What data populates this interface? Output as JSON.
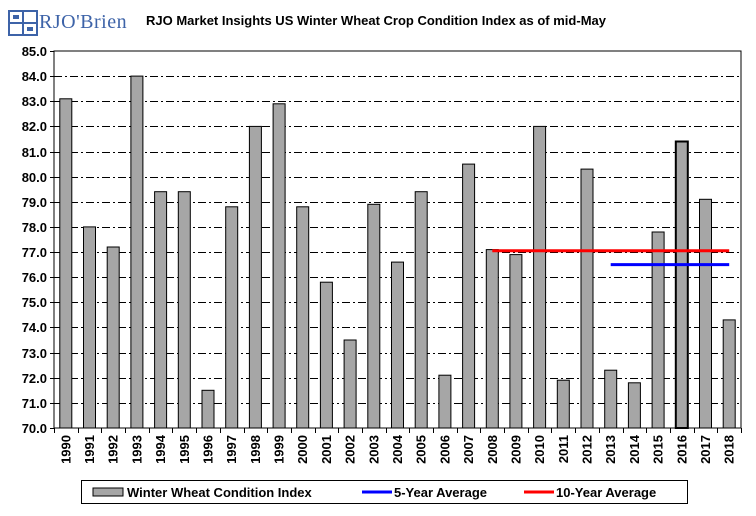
{
  "logo": {
    "text": "RJO'Brien"
  },
  "chart_data": {
    "type": "bar",
    "title": "RJO Market Insights US Winter Wheat Crop Condition Index as of mid-May",
    "xlabel": "",
    "ylabel": "",
    "ylim": [
      70.0,
      85.0
    ],
    "yticks": [
      "70.0",
      "71.0",
      "72.0",
      "73.0",
      "74.0",
      "75.0",
      "76.0",
      "77.0",
      "78.0",
      "79.0",
      "80.0",
      "81.0",
      "82.0",
      "83.0",
      "84.0",
      "85.0"
    ],
    "categories": [
      "1990",
      "1991",
      "1992",
      "1993",
      "1994",
      "1995",
      "1996",
      "1997",
      "1998",
      "1999",
      "2000",
      "2001",
      "2002",
      "2003",
      "2004",
      "2005",
      "2006",
      "2007",
      "2008",
      "2009",
      "2010",
      "2011",
      "2012",
      "2013",
      "2014",
      "2015",
      "2016",
      "2017",
      "2018"
    ],
    "series": [
      {
        "name": "Winter Wheat Condition Index",
        "type": "bar",
        "values": [
          83.1,
          78.0,
          77.2,
          84.0,
          79.4,
          79.4,
          71.5,
          78.8,
          82.0,
          82.9,
          78.8,
          75.8,
          73.5,
          78.9,
          76.6,
          79.4,
          72.1,
          80.5,
          77.1,
          76.9,
          82.0,
          71.9,
          80.3,
          72.3,
          71.8,
          77.8,
          81.4,
          79.1,
          74.3
        ],
        "highlight": "2016",
        "color": "#a6a6a6"
      },
      {
        "name": "5-Year Average",
        "type": "line",
        "x_start": "2013",
        "x_end": "2018",
        "value": 76.5,
        "color": "#0000ff"
      },
      {
        "name": "10-Year Average",
        "type": "line",
        "x_start": "2008",
        "x_end": "2018",
        "value": 77.05,
        "color": "#ff0000"
      }
    ],
    "legend": [
      "Winter Wheat Condition Index",
      "5-Year Average",
      "10-Year Average"
    ],
    "legend_position": "bottom",
    "grid": true
  }
}
